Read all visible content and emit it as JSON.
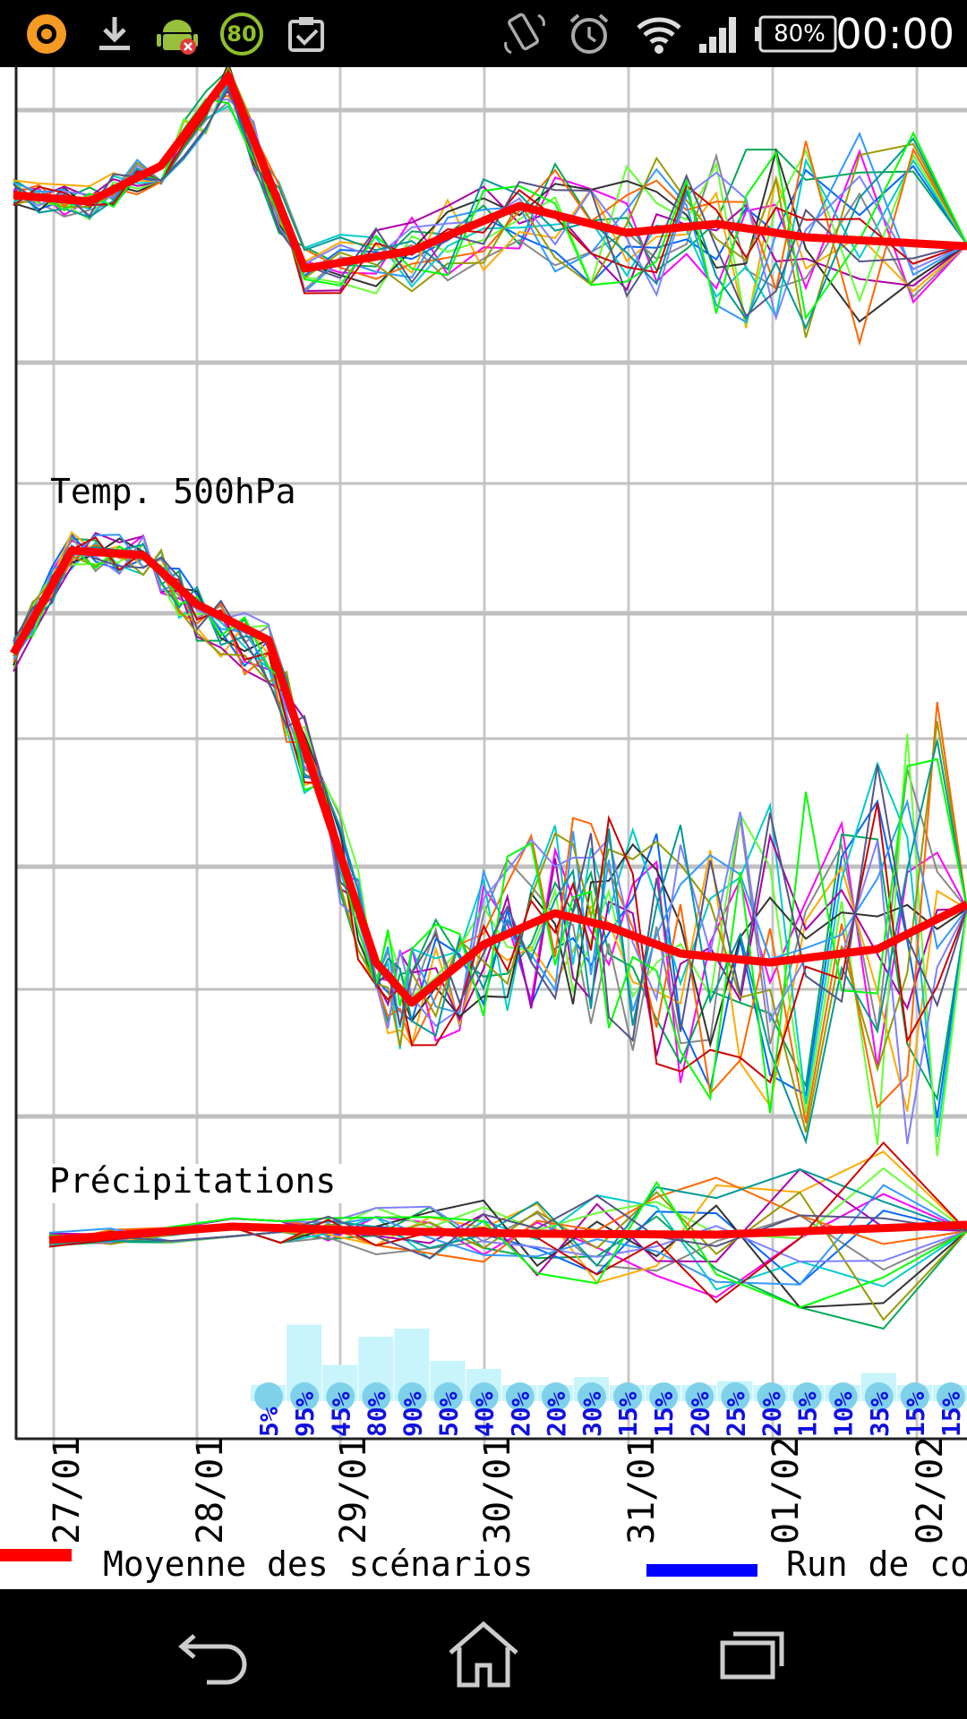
{
  "status_bar": {
    "battery_percent": "80%",
    "time": "00:00",
    "badge_number": "80",
    "icons": [
      "app-circle-icon",
      "download-icon",
      "android-debug-icon",
      "update-badge-icon",
      "clipboard-check-icon",
      "rotate-icon",
      "alarm-icon",
      "wifi-icon",
      "signal-icon",
      "battery-icon"
    ]
  },
  "chart": {
    "panel_temp_label": "Temp. 500hPa",
    "panel_precip_label": "Précipitations",
    "x_labels": [
      "27/01",
      "28/01",
      "29/01",
      "30/01",
      "31/01",
      "01/02",
      "02/02"
    ],
    "precip_probabilities": [
      "5%",
      "95%",
      "45%",
      "80%",
      "90%",
      "50%",
      "40%",
      "20%",
      "20%",
      "30%",
      "15%",
      "15%",
      "20%",
      "25%",
      "20%",
      "15%",
      "10%",
      "35%",
      "15%",
      "15%"
    ],
    "legend": [
      {
        "label": "Moyenne des scénarios",
        "color": "#ff0000"
      },
      {
        "label": "Run de co",
        "color": "#0000ff"
      }
    ],
    "mean_color": "#ff0000"
  },
  "nav_bar": {
    "buttons": [
      "back-icon",
      "home-icon",
      "recent-apps-icon"
    ]
  }
}
